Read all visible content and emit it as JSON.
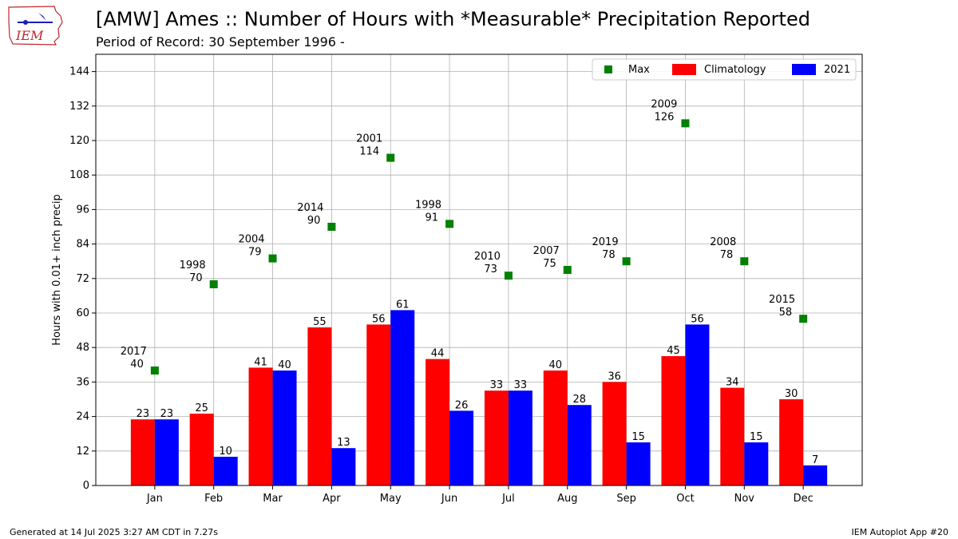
{
  "header": {
    "title": "[AMW] Ames :: Number of Hours with *Measurable* Precipitation Reported",
    "subtitle": "Period of Record: 30 September 1996 -",
    "logo_text": "IEM"
  },
  "footer": {
    "generated": "Generated at 14 Jul 2025 3:27 AM CDT in 7.27s",
    "app": "IEM Autoplot App #20"
  },
  "colors": {
    "climatology": "#ff0000",
    "current_year": "#0000ff",
    "max": "#008000",
    "grid": "#b0b0b0",
    "logo": "#c0282d"
  },
  "chart_data": {
    "type": "bar",
    "title": "[AMW] Ames :: Number of Hours with *Measurable* Precipitation Reported",
    "subtitle": "Period of Record: 30 September 1996 -",
    "xlabel": "",
    "ylabel": "Hours with 0.01+ inch precip",
    "ylim": [
      0,
      150
    ],
    "yticks": [
      0,
      12,
      24,
      36,
      48,
      60,
      72,
      84,
      96,
      108,
      120,
      132,
      144
    ],
    "grid": true,
    "legend_position": "top-right",
    "categories": [
      "Jan",
      "Feb",
      "Mar",
      "Apr",
      "May",
      "Jun",
      "Jul",
      "Aug",
      "Sep",
      "Oct",
      "Nov",
      "Dec"
    ],
    "series": [
      {
        "name": "Max",
        "kind": "marker",
        "color": "#008000",
        "values": [
          40,
          70,
          79,
          90,
          114,
          91,
          73,
          75,
          78,
          126,
          78,
          58
        ],
        "years": [
          "2017",
          "1998",
          "2004",
          "2014",
          "2001",
          "1998",
          "2010",
          "2007",
          "2019",
          "2009",
          "2008",
          "2015"
        ]
      },
      {
        "name": "Climatology",
        "kind": "bar",
        "color": "#ff0000",
        "values": [
          23,
          25,
          41,
          55,
          56,
          44,
          33,
          40,
          36,
          45,
          34,
          30
        ]
      },
      {
        "name": "2021",
        "kind": "bar",
        "color": "#0000ff",
        "values": [
          23,
          10,
          40,
          13,
          61,
          26,
          33,
          28,
          15,
          56,
          15,
          7
        ]
      }
    ]
  }
}
